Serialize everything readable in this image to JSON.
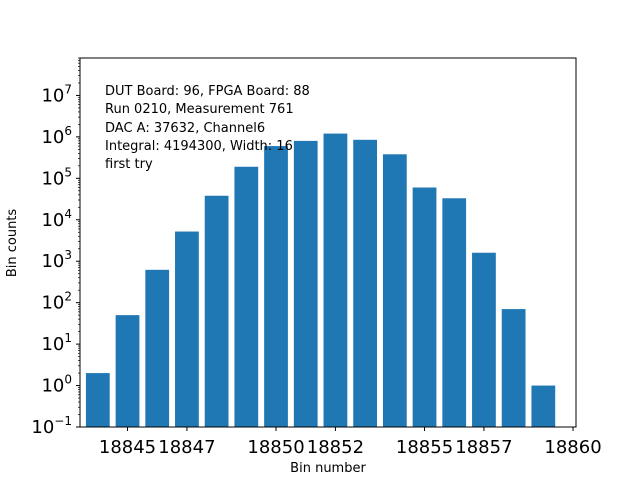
{
  "chart_data": {
    "type": "bar",
    "title": "",
    "xlabel": "Bin number",
    "ylabel": "Bin counts",
    "yscale": "log",
    "x": [
      18844,
      18845,
      18846,
      18847,
      18848,
      18849,
      18850,
      18851,
      18852,
      18853,
      18854,
      18855,
      18856,
      18857,
      18858,
      18859
    ],
    "values": [
      2,
      50,
      620,
      5200,
      38000,
      190000,
      600000,
      800000,
      1200000,
      850000,
      380000,
      60000,
      33000,
      1600,
      70,
      1
    ],
    "xlim": [
      18843.4,
      18860.1
    ],
    "ylim": [
      0.1,
      80000000
    ],
    "xticks": [
      "18845",
      "18847",
      "18850",
      "18852",
      "18855",
      "18857",
      "18860"
    ],
    "yticks": [
      "10−1",
      "100",
      "101",
      "102",
      "103",
      "104",
      "105",
      "106",
      "107"
    ],
    "bar_color": "#1f77b4",
    "grid": false,
    "annotation_lines": [
      "DUT Board: 96, FPGA Board: 88",
      "Run 0210, Measurement 761",
      "DAC A: 37632, Channel6",
      "Integral: 4194300, Width: 16",
      "first try"
    ]
  }
}
